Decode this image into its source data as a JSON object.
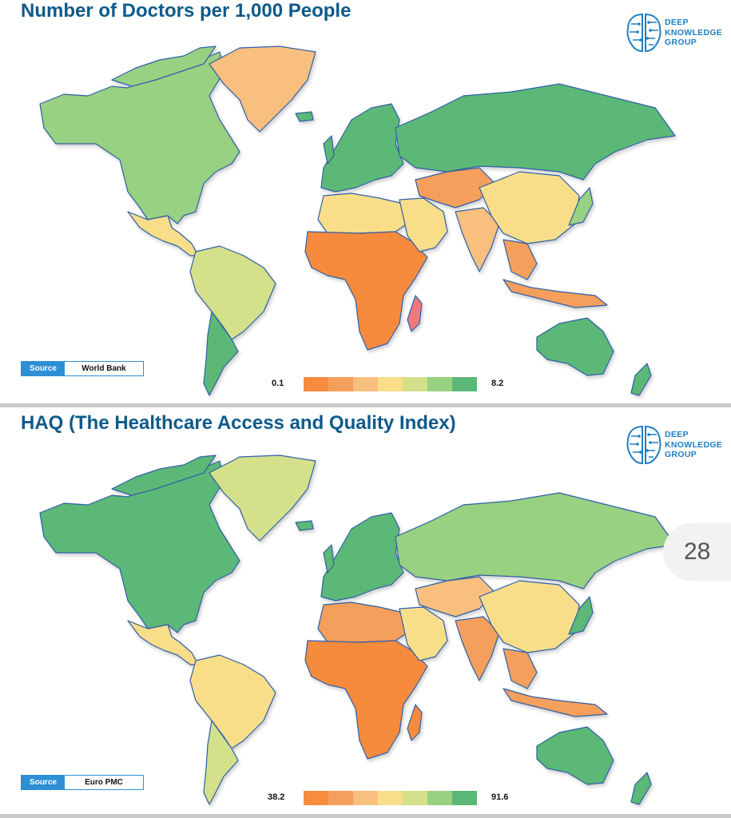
{
  "colors": {
    "scale": [
      "#f78b3e",
      "#f59f5c",
      "#f8bf7e",
      "#f9de8a",
      "#d4e08a",
      "#98d181",
      "#5cb877"
    ],
    "ocean": "#ffffff",
    "border": "#2f5fa8",
    "title": "#0e5a8a",
    "accent": "#2d8fd4"
  },
  "logo": {
    "line1": "DEEP",
    "line2": "KNOWLEDGE",
    "line3": "GROUP"
  },
  "panels": [
    {
      "title": "Number of Doctors per 1,000 People",
      "source_label": "Source",
      "source_value": "World Bank",
      "legend_min": "0.1",
      "legend_max": "8.2",
      "regions": {
        "north_america": "#98d181",
        "greenland": "#f8bf7e",
        "central_america": "#f9de8a",
        "south_america": "#d4e08a",
        "argentina": "#5cb877",
        "europe": "#5cb877",
        "russia": "#5cb877",
        "mideast": "#f9de8a",
        "north_africa": "#f9de8a",
        "sub_saharan_africa": "#f78b3e",
        "madagascar": "#f07a7a",
        "central_asia": "#f59f5c",
        "india": "#f8bf7e",
        "china": "#f9de8a",
        "se_asia": "#f59f5c",
        "australia": "#5cb877",
        "japan": "#98d181"
      }
    },
    {
      "title": "HAQ (The Healthcare Access and Quality Index)",
      "source_label": "Source",
      "source_value": "Euro PMC",
      "legend_min": "38.2",
      "legend_max": "91.6",
      "regions": {
        "north_america": "#5cb877",
        "greenland": "#d4e08a",
        "central_america": "#f9de8a",
        "south_america": "#f9de8a",
        "argentina": "#d4e08a",
        "europe": "#5cb877",
        "russia": "#98d181",
        "mideast": "#f9de8a",
        "north_africa": "#f59f5c",
        "sub_saharan_africa": "#f78b3e",
        "madagascar": "#f78b3e",
        "central_asia": "#f8bf7e",
        "india": "#f59f5c",
        "china": "#f9de8a",
        "se_asia": "#f59f5c",
        "australia": "#5cb877",
        "japan": "#5cb877"
      }
    }
  ],
  "page_number": "28"
}
